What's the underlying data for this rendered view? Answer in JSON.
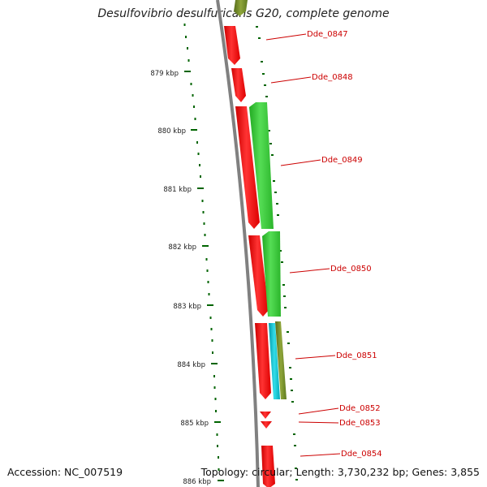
{
  "title": "Desulfovibrio desulfuricans G20, complete genome",
  "accession": "Accession: NC_007519",
  "summary": "Topology: circular; Length: 3,730,232 bp; Genes: 3,855",
  "kbp_labels": [
    "879 kbp",
    "880 kbp",
    "881 kbp",
    "882 kbp",
    "883 kbp",
    "884 kbp",
    "885 kbp",
    "886 kbp"
  ],
  "genes": [
    {
      "name": "Dde_0847",
      "color": "#ff0000"
    },
    {
      "name": "Dde_0848",
      "color": "#ff0000"
    },
    {
      "name": "Dde_0849",
      "color": "#33cc33"
    },
    {
      "name": "Dde_0850",
      "color": "#ff0000"
    },
    {
      "name": "Dde_0851",
      "color": "#00bcd4"
    },
    {
      "name": "Dde_0852",
      "color": "#ff0000"
    },
    {
      "name": "Dde_0853",
      "color": "#ff0000"
    },
    {
      "name": "Dde_0854",
      "color": "#ff0000"
    }
  ],
  "colors": {
    "backbone": "#808080",
    "ticks": "#006400",
    "forward_strand": "#ff0000",
    "reverse_strand": "#33cc33",
    "other_feature": "#00bcd4",
    "olive_feature": "#6b8e23",
    "label": "#cc0000"
  }
}
